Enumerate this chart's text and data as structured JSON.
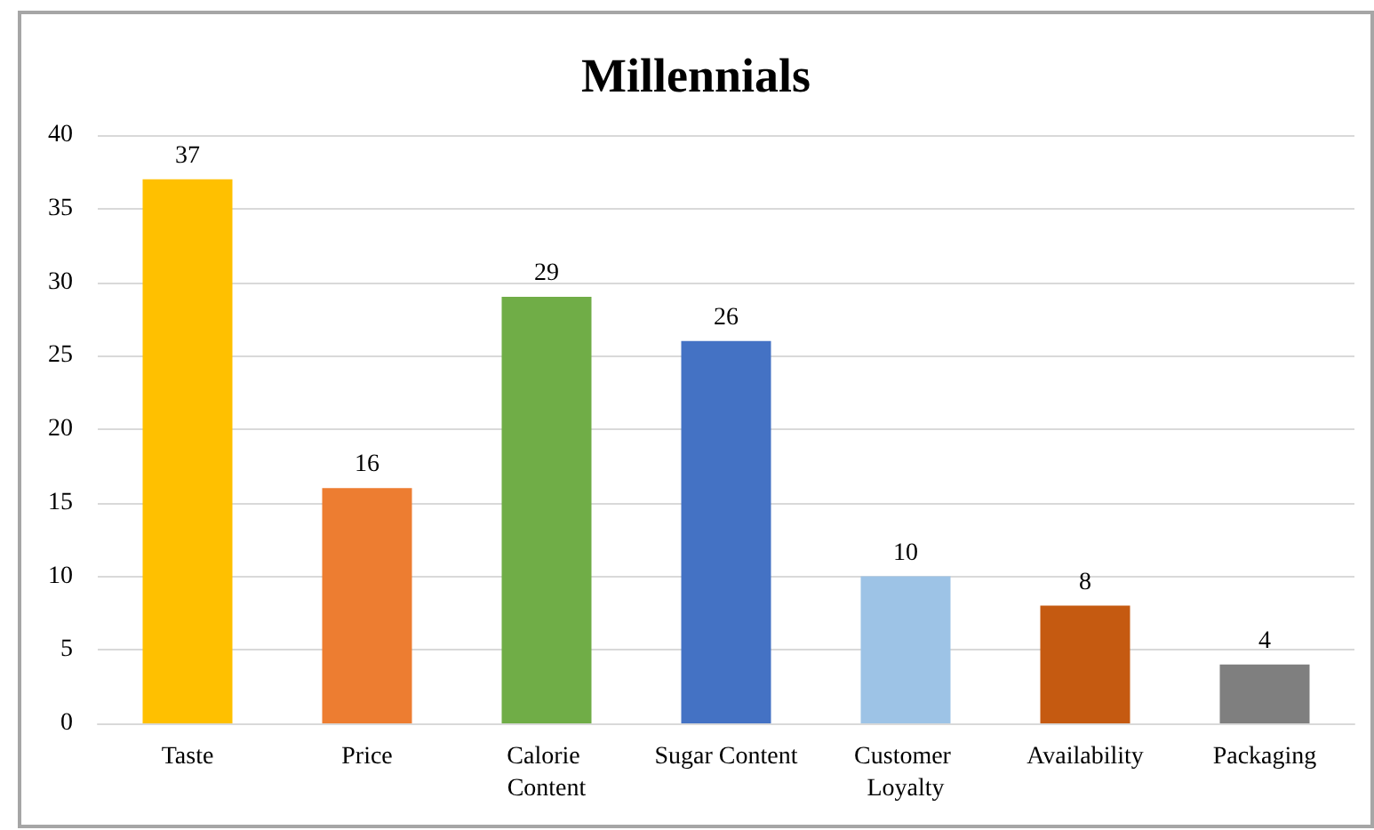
{
  "chart_data": {
    "type": "bar",
    "title": "Millennials",
    "categories": [
      "Taste",
      "Price",
      "Calorie Content",
      "Sugar Content",
      "Customer Loyalty",
      "Availability",
      "Packaging"
    ],
    "values": [
      37,
      16,
      29,
      26,
      10,
      8,
      4
    ],
    "colors": [
      "#ffc000",
      "#ed7d31",
      "#70ad47",
      "#4472c4",
      "#9dc3e6",
      "#c55a11",
      "#7f7f7f"
    ],
    "ylim": [
      0,
      40
    ],
    "yticks": [
      0,
      5,
      10,
      15,
      20,
      25,
      30,
      35,
      40
    ],
    "grid": "y",
    "data_labels": true
  }
}
